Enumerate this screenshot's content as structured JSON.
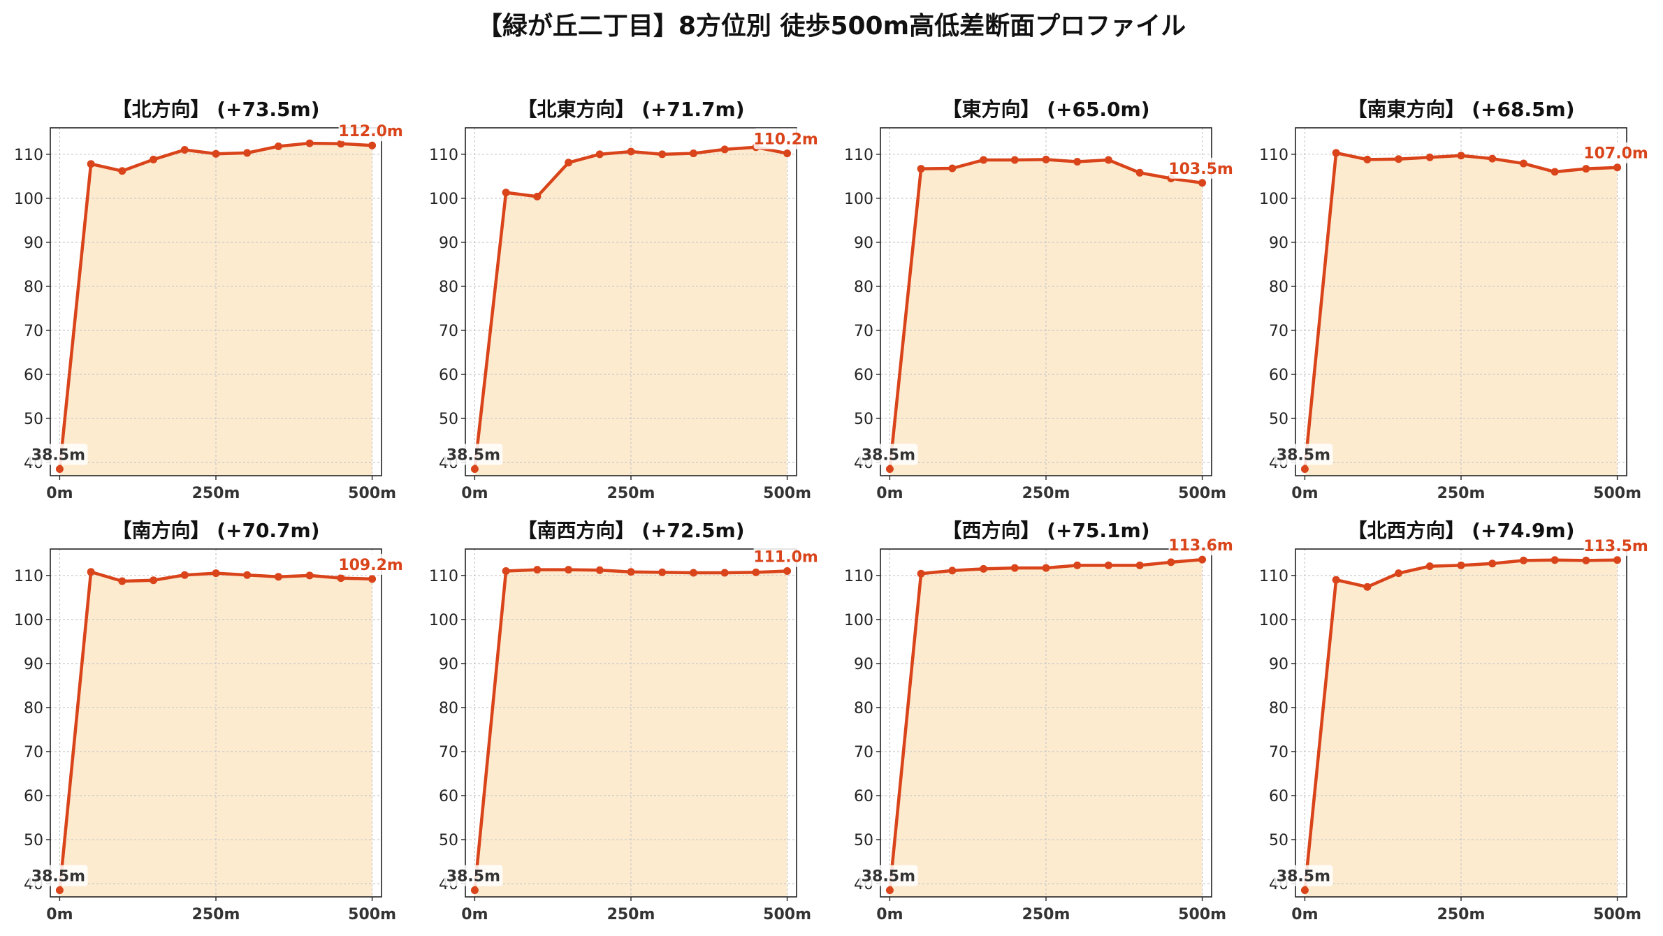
{
  "title": "【緑が丘二丁目】8方位別 徒歩500m高低差断面プロファイル",
  "colors": {
    "line": "#d9441a",
    "fill": "#fdebd0",
    "start_label": "#333333",
    "end_label": "#d9441a",
    "grid": "#c8c8c8"
  },
  "chart_data": [
    {
      "type": "area",
      "title": "【北方向】 (+73.5m)",
      "x": [
        0,
        50,
        100,
        150,
        200,
        250,
        300,
        350,
        400,
        450,
        500
      ],
      "values": [
        38.5,
        107.8,
        106.2,
        108.8,
        111.0,
        110.1,
        110.3,
        111.8,
        112.5,
        112.4,
        112.0
      ],
      "x_ticks": [
        "0m",
        "250m",
        "500m"
      ],
      "y_ticks": [
        "40",
        "50",
        "60",
        "70",
        "80",
        "90",
        "100",
        "110"
      ],
      "ylim": [
        37,
        116
      ],
      "xlim": [
        -15,
        515
      ],
      "grid": true,
      "start_label": "38.5m",
      "end_label": "112.0m"
    },
    {
      "type": "area",
      "title": "【北東方向】 (+71.7m)",
      "x": [
        0,
        50,
        100,
        150,
        200,
        250,
        300,
        350,
        400,
        450,
        500
      ],
      "values": [
        38.5,
        101.3,
        100.4,
        108.1,
        110.0,
        110.6,
        110.0,
        110.2,
        111.1,
        111.6,
        110.2
      ],
      "x_ticks": [
        "0m",
        "250m",
        "500m"
      ],
      "y_ticks": [
        "40",
        "50",
        "60",
        "70",
        "80",
        "90",
        "100",
        "110"
      ],
      "ylim": [
        37,
        116
      ],
      "xlim": [
        -15,
        515
      ],
      "grid": true,
      "start_label": "38.5m",
      "end_label": "110.2m"
    },
    {
      "type": "area",
      "title": "【東方向】 (+65.0m)",
      "x": [
        0,
        50,
        100,
        150,
        200,
        250,
        300,
        350,
        400,
        450,
        500
      ],
      "values": [
        38.5,
        106.7,
        106.8,
        108.7,
        108.7,
        108.8,
        108.3,
        108.7,
        105.8,
        104.5,
        103.5
      ],
      "x_ticks": [
        "0m",
        "250m",
        "500m"
      ],
      "y_ticks": [
        "40",
        "50",
        "60",
        "70",
        "80",
        "90",
        "100",
        "110"
      ],
      "ylim": [
        37,
        116
      ],
      "xlim": [
        -15,
        515
      ],
      "grid": true,
      "start_label": "38.5m",
      "end_label": "103.5m"
    },
    {
      "type": "area",
      "title": "【南東方向】 (+68.5m)",
      "x": [
        0,
        50,
        100,
        150,
        200,
        250,
        300,
        350,
        400,
        450,
        500
      ],
      "values": [
        38.5,
        110.3,
        108.8,
        108.9,
        109.3,
        109.7,
        109.0,
        107.9,
        106.0,
        106.7,
        107.0
      ],
      "x_ticks": [
        "0m",
        "250m",
        "500m"
      ],
      "y_ticks": [
        "40",
        "50",
        "60",
        "70",
        "80",
        "90",
        "100",
        "110"
      ],
      "ylim": [
        37,
        116
      ],
      "xlim": [
        -15,
        515
      ],
      "grid": true,
      "start_label": "38.5m",
      "end_label": "107.0m"
    },
    {
      "type": "area",
      "title": "【南方向】 (+70.7m)",
      "x": [
        0,
        50,
        100,
        150,
        200,
        250,
        300,
        350,
        400,
        450,
        500
      ],
      "values": [
        38.5,
        110.8,
        108.7,
        108.9,
        110.1,
        110.5,
        110.1,
        109.7,
        110.0,
        109.4,
        109.2
      ],
      "x_ticks": [
        "0m",
        "250m",
        "500m"
      ],
      "y_ticks": [
        "40",
        "50",
        "60",
        "70",
        "80",
        "90",
        "100",
        "110"
      ],
      "ylim": [
        37,
        116
      ],
      "xlim": [
        -15,
        515
      ],
      "grid": true,
      "start_label": "38.5m",
      "end_label": "109.2m"
    },
    {
      "type": "area",
      "title": "【南西方向】 (+72.5m)",
      "x": [
        0,
        50,
        100,
        150,
        200,
        250,
        300,
        350,
        400,
        450,
        500
      ],
      "values": [
        38.5,
        111.0,
        111.3,
        111.3,
        111.2,
        110.8,
        110.7,
        110.6,
        110.6,
        110.7,
        111.0
      ],
      "x_ticks": [
        "0m",
        "250m",
        "500m"
      ],
      "y_ticks": [
        "40",
        "50",
        "60",
        "70",
        "80",
        "90",
        "100",
        "110"
      ],
      "ylim": [
        37,
        116
      ],
      "xlim": [
        -15,
        515
      ],
      "grid": true,
      "start_label": "38.5m",
      "end_label": "111.0m"
    },
    {
      "type": "area",
      "title": "【西方向】 (+75.1m)",
      "x": [
        0,
        50,
        100,
        150,
        200,
        250,
        300,
        350,
        400,
        450,
        500
      ],
      "values": [
        38.5,
        110.4,
        111.1,
        111.5,
        111.7,
        111.7,
        112.3,
        112.3,
        112.3,
        113.0,
        113.6
      ],
      "x_ticks": [
        "0m",
        "250m",
        "500m"
      ],
      "y_ticks": [
        "40",
        "50",
        "60",
        "70",
        "80",
        "90",
        "100",
        "110"
      ],
      "ylim": [
        37,
        116
      ],
      "xlim": [
        -15,
        515
      ],
      "grid": true,
      "start_label": "38.5m",
      "end_label": "113.6m"
    },
    {
      "type": "area",
      "title": "【北西方向】 (+74.9m)",
      "x": [
        0,
        50,
        100,
        150,
        200,
        250,
        300,
        350,
        400,
        450,
        500
      ],
      "values": [
        38.5,
        109.0,
        107.4,
        110.5,
        112.1,
        112.3,
        112.7,
        113.4,
        113.5,
        113.4,
        113.5
      ],
      "x_ticks": [
        "0m",
        "250m",
        "500m"
      ],
      "y_ticks": [
        "40",
        "50",
        "60",
        "70",
        "80",
        "90",
        "100",
        "110"
      ],
      "ylim": [
        37,
        116
      ],
      "xlim": [
        -15,
        515
      ],
      "grid": true,
      "start_label": "38.5m",
      "end_label": "113.5m"
    }
  ]
}
